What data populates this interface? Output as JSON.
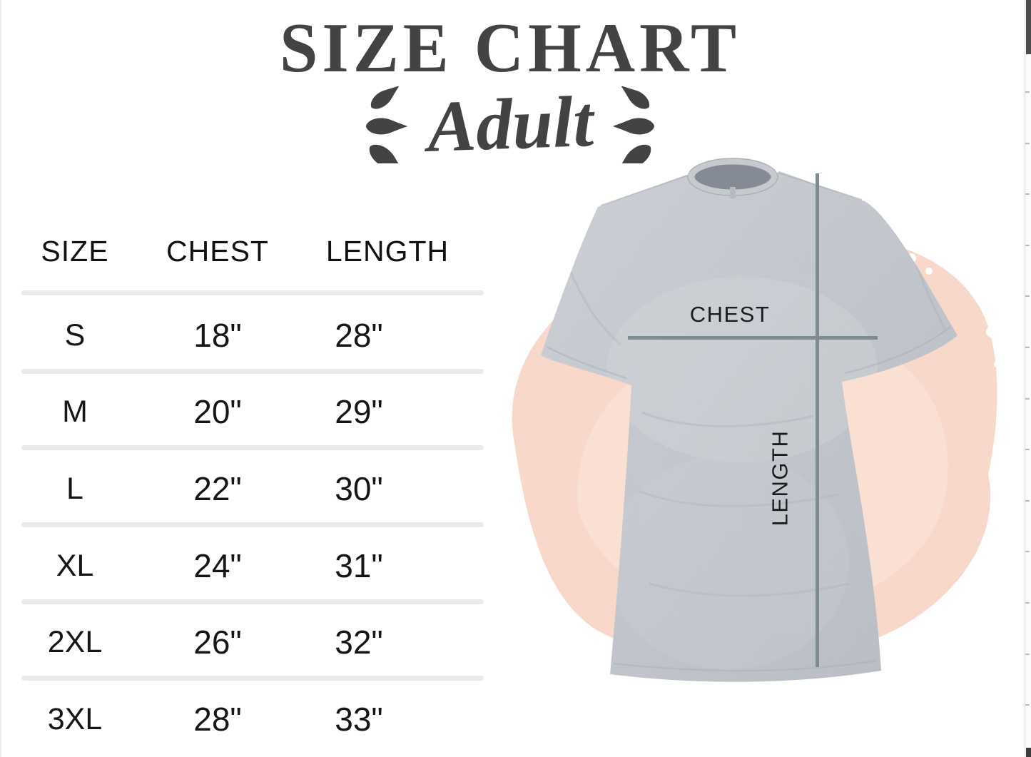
{
  "title": {
    "main": "SIZE CHART",
    "sub": "Adult"
  },
  "size_table": {
    "headers": {
      "size": "SIZE",
      "chest": "CHEST",
      "length": "LENGTH"
    },
    "rows": [
      {
        "size": "S",
        "chest": "18\"",
        "length": "28\""
      },
      {
        "size": "M",
        "chest": "20\"",
        "length": "29\""
      },
      {
        "size": "L",
        "chest": "22\"",
        "length": "30\""
      },
      {
        "size": "XL",
        "chest": "24\"",
        "length": "31\""
      },
      {
        "size": "2XL",
        "chest": "26\"",
        "length": "32\""
      },
      {
        "size": "3XL",
        "chest": "28\"",
        "length": "33\""
      }
    ]
  },
  "shirt_diagram": {
    "chest_line_label": "CHEST",
    "length_line_label": "LENGTH"
  },
  "chart_data": {
    "type": "table",
    "title": "SIZE CHART — Adult",
    "columns": [
      "SIZE",
      "CHEST",
      "LENGTH"
    ],
    "rows": [
      [
        "S",
        "18\"",
        "28\""
      ],
      [
        "M",
        "20\"",
        "29\""
      ],
      [
        "L",
        "22\"",
        "30\""
      ],
      [
        "XL",
        "24\"",
        "31\""
      ],
      [
        "2XL",
        "26\"",
        "32\""
      ],
      [
        "3XL",
        "28\"",
        "33\""
      ]
    ]
  },
  "colors": {
    "heading_text": "#434245",
    "table_text": "#161616",
    "table_divider": "#e9eaee",
    "measure_line": "#7c8c93",
    "shirt_gray": "#c3c7cd",
    "splash_pink": "#f8d8ca",
    "scrollbar_thumb": "#4c4c4c"
  }
}
